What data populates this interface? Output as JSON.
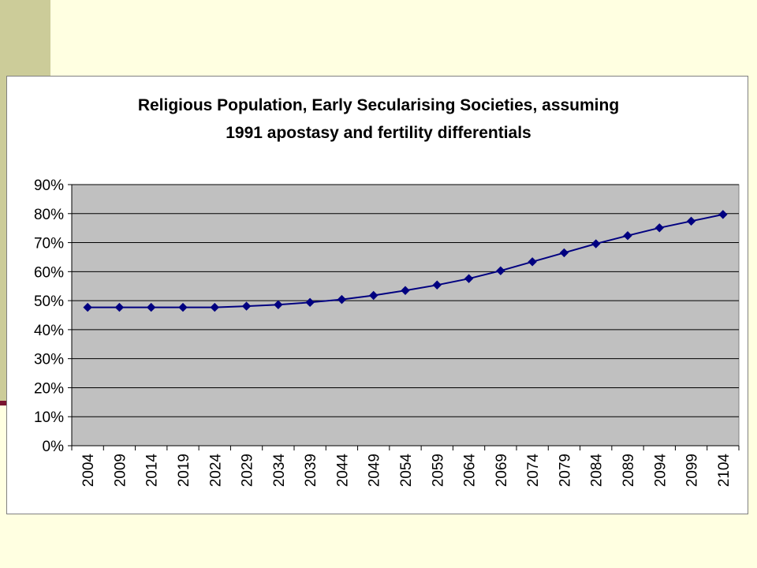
{
  "colors": {
    "page_background": "#FFFFE1",
    "left_bar": "#CCCC99",
    "accent_tick": "#7A1530",
    "plot_area": "#C0C0C0",
    "series_line": "#000080",
    "gridline": "#000000"
  },
  "chart_data": {
    "type": "line",
    "title": [
      "Religious Population, Early Secularising Societies, assuming",
      "1991 apostasy and fertility differentials"
    ],
    "xlabel": "",
    "ylabel": "",
    "categories": [
      "2004",
      "2009",
      "2014",
      "2019",
      "2024",
      "2029",
      "2034",
      "2039",
      "2044",
      "2049",
      "2054",
      "2059",
      "2064",
      "2069",
      "2074",
      "2079",
      "2084",
      "2089",
      "2094",
      "2099",
      "2104"
    ],
    "ylim": [
      0,
      90
    ],
    "yticks": [
      0,
      10,
      20,
      30,
      40,
      50,
      60,
      70,
      80,
      90
    ],
    "ytick_labels": [
      "0%",
      "10%",
      "20%",
      "30%",
      "40%",
      "50%",
      "60%",
      "70%",
      "80%",
      "90%"
    ],
    "y_unit": "%",
    "grid": "horizontal",
    "legend": "none",
    "marker": "diamond",
    "series": [
      {
        "values": [
          47.7,
          47.7,
          47.7,
          47.7,
          47.7,
          48.1,
          48.6,
          49.4,
          50.4,
          51.8,
          53.5,
          55.4,
          57.6,
          60.3,
          63.4,
          66.5,
          69.6,
          72.4,
          75.1,
          77.4,
          79.7
        ]
      }
    ]
  }
}
